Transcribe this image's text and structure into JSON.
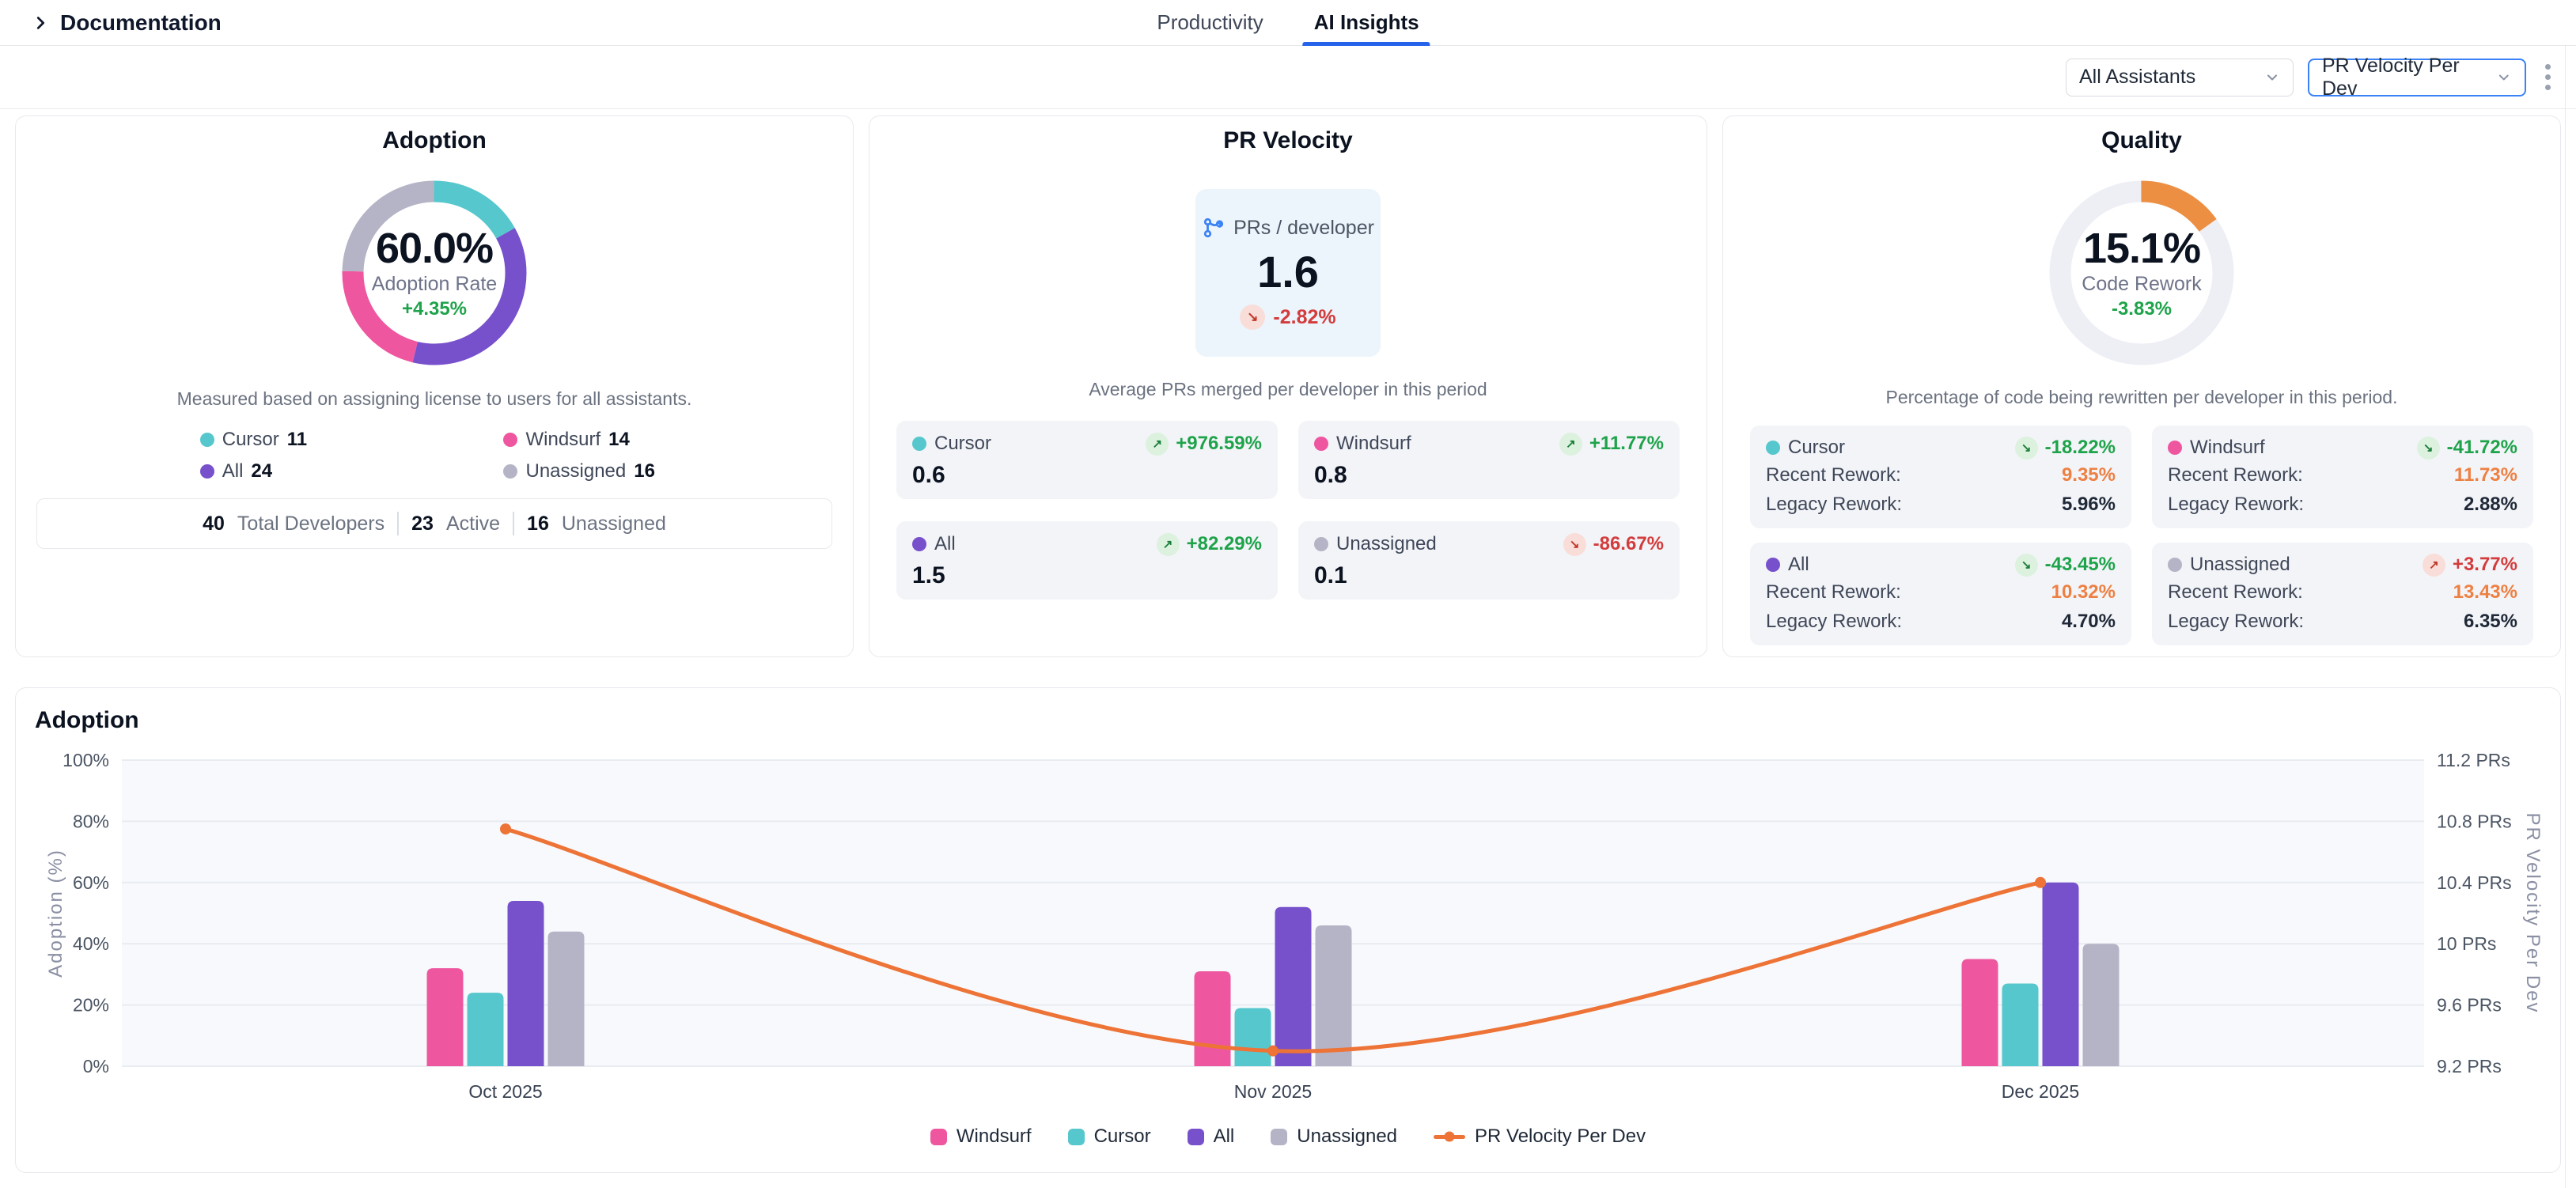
{
  "header": {
    "breadcrumb": "Documentation",
    "tabs": [
      {
        "label": "Productivity",
        "active": false
      },
      {
        "label": "AI Insights",
        "active": true
      }
    ]
  },
  "toolbar": {
    "assistant_filter": "All Assistants",
    "metric_filter": "PR Velocity Per Dev"
  },
  "icons": {
    "breadcrumb": "chevron-right-icon",
    "selects": "chevron-down-icon",
    "menu": "kebab-icon",
    "pr_metric": "git-branch-icon",
    "up_arrow": "↗",
    "down_arrow": "↘"
  },
  "colors": {
    "windsurf": "#ee57a0",
    "cursor": "#56c7cd",
    "all": "#7750cc",
    "unassigned": "#b5b4c6",
    "line": "#ed7336",
    "quality_arc": "#ed8f43",
    "donut_track": "#edeff5",
    "accent_blue": "#3b82f6",
    "green": "#1ea34a",
    "red": "#d33c3c",
    "orange": "#ed8043"
  },
  "cards": {
    "adoption": {
      "title": "Adoption",
      "center_value": "60.0%",
      "center_label": "Adoption Rate",
      "center_delta": "+4.35%",
      "center_delta_tone": "delta-good",
      "donut_segments": [
        {
          "name": "Cursor",
          "color": "cursor",
          "value": 11
        },
        {
          "name": "All",
          "color": "all",
          "value": 24
        },
        {
          "name": "Windsurf",
          "color": "windsurf",
          "value": 14
        },
        {
          "name": "Unassigned",
          "color": "unassigned",
          "value": 16
        }
      ],
      "note": "Measured based on assigning license to users for all assistants.",
      "legend": [
        {
          "name": "Cursor",
          "value": "11",
          "color": "cursor"
        },
        {
          "name": "Windsurf",
          "value": "14",
          "color": "windsurf"
        },
        {
          "name": "All",
          "value": "24",
          "color": "all"
        },
        {
          "name": "Unassigned",
          "value": "16",
          "color": "unassigned"
        }
      ],
      "stats": [
        {
          "value": "40",
          "label": "Total Developers"
        },
        {
          "value": "23",
          "label": "Active"
        },
        {
          "value": "16",
          "label": "Unassigned"
        }
      ]
    },
    "pr_velocity": {
      "title": "PR Velocity",
      "metric_label": "PRs / developer",
      "metric_value": "1.6",
      "metric_delta": "-2.82%",
      "metric_delta_arrow": "↘",
      "metric_delta_tone": "delta-bad",
      "subtitle": "Average PRs merged per developer in this period",
      "tiles": [
        {
          "name": "Cursor",
          "color": "cursor",
          "arrow": "↗",
          "delta": "+976.59%",
          "tone": "delta-good",
          "value": "0.6"
        },
        {
          "name": "Windsurf",
          "color": "windsurf",
          "arrow": "↗",
          "delta": "+11.77%",
          "tone": "delta-good",
          "value": "0.8"
        },
        {
          "name": "All",
          "color": "all",
          "arrow": "↗",
          "delta": "+82.29%",
          "tone": "delta-good",
          "value": "1.5"
        },
        {
          "name": "Unassigned",
          "color": "unassigned",
          "arrow": "↘",
          "delta": "-86.67%",
          "tone": "delta-bad",
          "value": "0.1"
        }
      ]
    },
    "quality": {
      "title": "Quality",
      "center_value": "15.1%",
      "center_label": "Code Rework",
      "center_delta": "-3.83%",
      "center_delta_tone": "delta-good",
      "percent": 15.1,
      "subtitle": "Percentage of code being rewritten per developer in this period.",
      "recent_label": "Recent Rework:",
      "legacy_label": "Legacy Rework:",
      "tiles": [
        {
          "name": "Cursor",
          "color": "cursor",
          "arrow": "↘",
          "delta": "-18.22%",
          "tone": "delta-good",
          "recent": "9.35%",
          "legacy": "5.96%"
        },
        {
          "name": "Windsurf",
          "color": "windsurf",
          "arrow": "↘",
          "delta": "-41.72%",
          "tone": "delta-good",
          "recent": "11.73%",
          "legacy": "2.88%"
        },
        {
          "name": "All",
          "color": "all",
          "arrow": "↘",
          "delta": "-43.45%",
          "tone": "delta-good",
          "recent": "10.32%",
          "legacy": "4.70%"
        },
        {
          "name": "Unassigned",
          "color": "unassigned",
          "arrow": "↗",
          "delta": "+3.77%",
          "tone": "delta-bad",
          "recent": "13.43%",
          "legacy": "6.35%"
        }
      ]
    }
  },
  "chart_data": {
    "type": "bar+line combo",
    "title": "Adoption",
    "categories": [
      "Oct 2025",
      "Nov 2025",
      "Dec 2025"
    ],
    "series": [
      {
        "name": "Windsurf",
        "type": "bar",
        "color": "windsurf",
        "values": [
          32,
          31,
          35
        ]
      },
      {
        "name": "Cursor",
        "type": "bar",
        "color": "cursor",
        "values": [
          24,
          19,
          27
        ]
      },
      {
        "name": "All",
        "type": "bar",
        "color": "all",
        "values": [
          54,
          52,
          60
        ]
      },
      {
        "name": "Unassigned",
        "type": "bar",
        "color": "unassigned",
        "values": [
          44,
          46,
          40
        ]
      }
    ],
    "line_series": {
      "name": "PR Velocity Per Dev",
      "type": "line",
      "color": "line",
      "values": [
        10.75,
        9.3,
        10.4
      ]
    },
    "y_left": {
      "label": "Adoption (%)",
      "min": 0,
      "max": 100,
      "ticks": [
        "0%",
        "20%",
        "40%",
        "60%",
        "80%",
        "100%"
      ]
    },
    "y_right": {
      "label": "PR Velocity Per Dev",
      "min": 9.2,
      "max": 11.2,
      "ticks": [
        "9.2 PRs",
        "9.6 PRs",
        "10 PRs",
        "10.4 PRs",
        "10.8 PRs",
        "11.2 PRs"
      ]
    },
    "grid": true,
    "legend_position": "bottom"
  }
}
